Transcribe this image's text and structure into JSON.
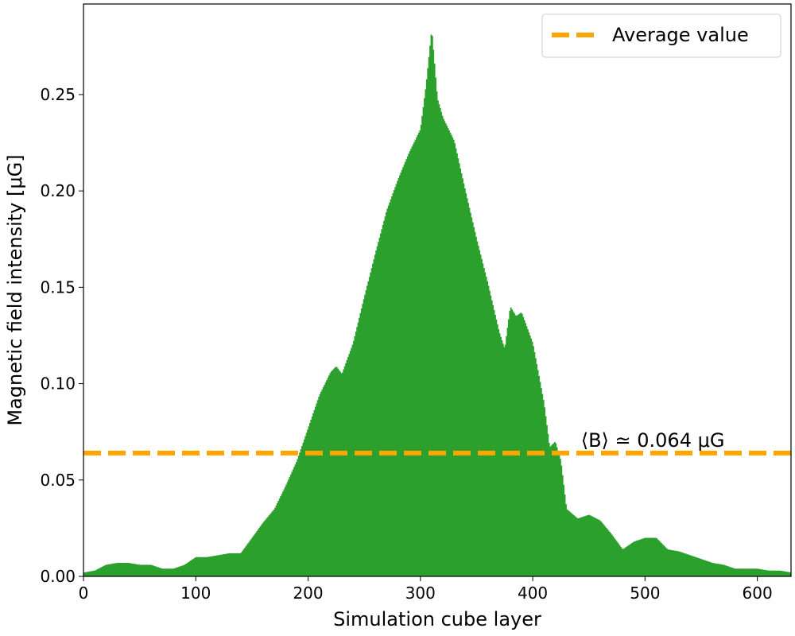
{
  "chart_data": {
    "type": "area",
    "title": "",
    "xlabel": "Simulation cube layer",
    "ylabel": "Magnetic field intensity [μG]",
    "xlim": [
      0,
      630
    ],
    "ylim": [
      0,
      0.297
    ],
    "xticks": [
      0,
      100,
      200,
      300,
      400,
      500,
      600
    ],
    "xtick_labels": [
      "0",
      "100",
      "200",
      "300",
      "400",
      "500",
      "600"
    ],
    "yticks": [
      0.0,
      0.05,
      0.1,
      0.15,
      0.2,
      0.25
    ],
    "ytick_labels": [
      "0.00",
      "0.05",
      "0.10",
      "0.15",
      "0.20",
      "0.25"
    ],
    "grid": false,
    "legend": {
      "position": "top-right",
      "entries": [
        "Average value"
      ]
    },
    "series": [
      {
        "kind": "filled-bars",
        "color": "#2ca02c",
        "x": [
          0,
          10,
          20,
          30,
          40,
          50,
          60,
          70,
          80,
          90,
          100,
          110,
          120,
          130,
          140,
          150,
          160,
          170,
          180,
          190,
          200,
          210,
          220,
          225,
          230,
          240,
          250,
          260,
          270,
          280,
          290,
          300,
          305,
          310,
          315,
          320,
          330,
          340,
          350,
          360,
          370,
          375,
          380,
          385,
          390,
          400,
          410,
          415,
          420,
          425,
          430,
          440,
          450,
          460,
          470,
          480,
          490,
          500,
          510,
          520,
          530,
          540,
          550,
          560,
          570,
          580,
          590,
          600,
          610,
          620,
          630
        ],
        "y": [
          0.002,
          0.003,
          0.006,
          0.007,
          0.007,
          0.006,
          0.006,
          0.004,
          0.004,
          0.006,
          0.01,
          0.01,
          0.011,
          0.012,
          0.012,
          0.02,
          0.028,
          0.035,
          0.047,
          0.06,
          0.077,
          0.094,
          0.106,
          0.109,
          0.105,
          0.121,
          0.145,
          0.168,
          0.19,
          0.206,
          0.22,
          0.232,
          0.255,
          0.284,
          0.248,
          0.238,
          0.226,
          0.2,
          0.175,
          0.152,
          0.127,
          0.118,
          0.14,
          0.135,
          0.137,
          0.121,
          0.09,
          0.067,
          0.07,
          0.06,
          0.035,
          0.03,
          0.032,
          0.029,
          0.022,
          0.014,
          0.018,
          0.02,
          0.02,
          0.014,
          0.013,
          0.011,
          0.009,
          0.007,
          0.006,
          0.004,
          0.004,
          0.004,
          0.003,
          0.003,
          0.002
        ]
      },
      {
        "name": "Average value",
        "kind": "dashed-line",
        "color": "#ffa500",
        "value": 0.064
      }
    ],
    "annotations": [
      {
        "text": "⟨B⟩ ≃ 0.064 μG",
        "x": 450,
        "y": 0.068
      }
    ]
  }
}
